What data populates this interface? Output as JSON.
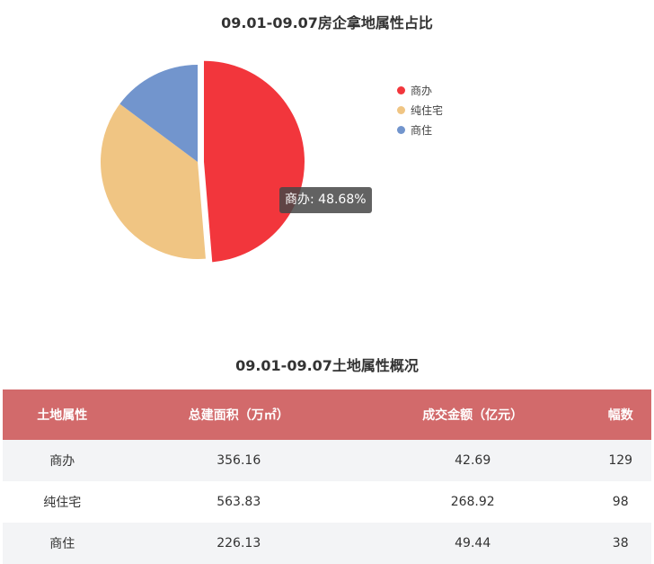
{
  "chart_data": {
    "type": "pie",
    "title": "09.01-09.07房企拿地属性占比",
    "categories": [
      "商办",
      "纯住宅",
      "商住"
    ],
    "values": [
      48.68,
      36.5,
      14.82
    ],
    "colors": [
      "#f2363c",
      "#f0c583",
      "#7295cd"
    ],
    "legend": "right",
    "tooltip": "商办: 48.68%"
  },
  "table": {
    "title": "09.01-09.07土地属性概况",
    "headers": [
      "土地属性",
      "总建面积（万㎡）",
      "成交金额（亿元）",
      "幅数"
    ],
    "rows": [
      [
        "商办",
        "356.16",
        "42.69",
        "129"
      ],
      [
        "纯住宅",
        "563.83",
        "268.92",
        "98"
      ],
      [
        "商住",
        "226.13",
        "49.44",
        "38"
      ]
    ],
    "header_color": "#d26a6b"
  }
}
